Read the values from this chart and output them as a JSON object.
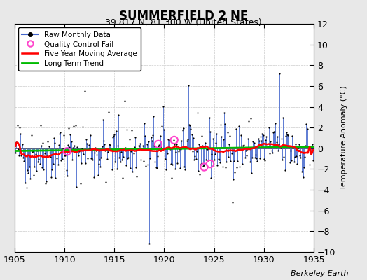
{
  "title": "SUMMERFIELD 2 NE",
  "subtitle": "39.817 N, 81.300 W (United States)",
  "ylabel": "Temperature Anomaly (°C)",
  "watermark": "Berkeley Earth",
  "xlim": [
    1905,
    1935
  ],
  "ylim": [
    -10,
    12
  ],
  "yticks": [
    -10,
    -8,
    -6,
    -4,
    -2,
    0,
    2,
    4,
    6,
    8,
    10,
    12
  ],
  "xticks": [
    1905,
    1910,
    1915,
    1920,
    1925,
    1930,
    1935
  ],
  "fig_bg_color": "#e8e8e8",
  "plot_bg_color": "#ffffff",
  "grid_color": "#cccccc",
  "stem_color": "#4466cc",
  "dot_color": "#000000",
  "ma_color": "#ff0000",
  "trend_color": "#00bb00",
  "qc_color": "#ff44cc",
  "legend_labels": [
    "Raw Monthly Data",
    "Quality Control Fail",
    "Five Year Moving Average",
    "Long-Term Trend"
  ],
  "seed": 42,
  "start_year": 1905,
  "end_year": 1935
}
